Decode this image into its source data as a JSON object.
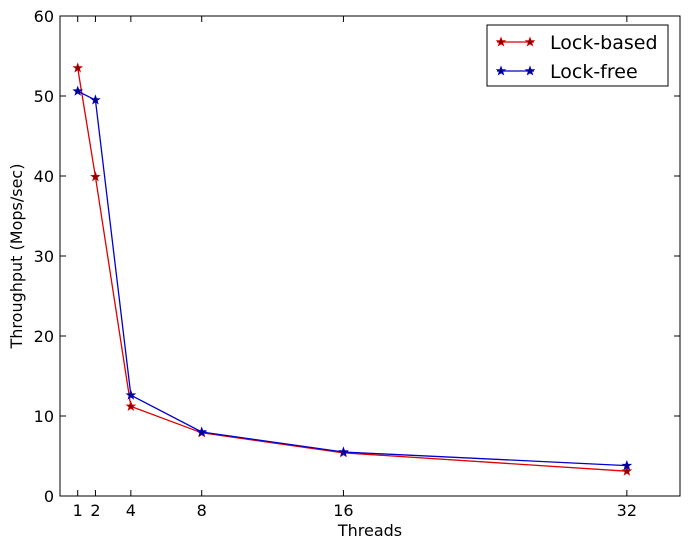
{
  "chart_data": {
    "type": "line",
    "xlabel": "Threads",
    "ylabel": "Throughput (Mops/sec)",
    "xlim": [
      0,
      35
    ],
    "ylim": [
      0,
      60
    ],
    "xticks": [
      1,
      2,
      4,
      8,
      16,
      32
    ],
    "yticks": [
      0,
      10,
      20,
      30,
      40,
      50,
      60
    ],
    "grid": false,
    "legend_position": "top-right",
    "marker": "star",
    "series": [
      {
        "name": "Lock-based",
        "color": "#dd0000",
        "marker_fill": "#800000",
        "x": [
          1,
          2,
          4,
          8,
          16,
          32
        ],
        "y": [
          53.5,
          39.9,
          11.2,
          7.9,
          5.4,
          3.1
        ]
      },
      {
        "name": "Lock-free",
        "color": "#0000cc",
        "marker_fill": "#000080",
        "x": [
          1,
          2,
          4,
          8,
          16,
          32
        ],
        "y": [
          50.6,
          49.5,
          12.6,
          8.0,
          5.5,
          3.8
        ]
      }
    ]
  }
}
